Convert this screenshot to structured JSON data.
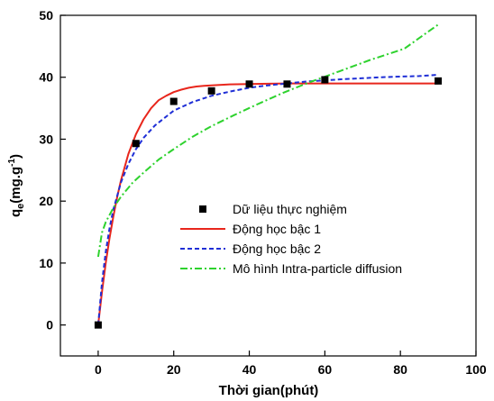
{
  "chart_data": {
    "type": "scatter",
    "xlabel": "Thời gian(phút)",
    "ylabel": {
      "main": "q",
      "sub": "e",
      "unit_open": "(mg.g",
      "sup": "-1",
      "unit_close": ")"
    },
    "xlim": [
      -10,
      100
    ],
    "ylim": [
      -5,
      50
    ],
    "x_ticks": [
      0,
      20,
      40,
      60,
      80,
      100
    ],
    "y_ticks": [
      0,
      10,
      20,
      30,
      40,
      50
    ],
    "grid": false,
    "legend_position": "center-right",
    "series": [
      {
        "name": "Dữ liệu thực nghiệm",
        "kind": "points",
        "color": "#000000",
        "x": [
          0,
          10,
          20,
          30,
          40,
          50,
          60,
          90
        ],
        "y": [
          0,
          29.3,
          36.1,
          37.8,
          38.9,
          38.9,
          39.6,
          39.4
        ]
      },
      {
        "name": "Động học bậc 1",
        "kind": "line",
        "style": "solid",
        "color": "#e8261c",
        "x": [
          0,
          1,
          2,
          3,
          4,
          5,
          6,
          8,
          10,
          12,
          14,
          16,
          18,
          20,
          22,
          24,
          26,
          28,
          30,
          35,
          40,
          45,
          50,
          55,
          60,
          65,
          70,
          75,
          80,
          85,
          90
        ],
        "y": [
          0,
          5.3,
          10.0,
          14.0,
          17.5,
          20.6,
          23.3,
          27.6,
          30.8,
          33.2,
          35.0,
          36.3,
          37.0,
          37.6,
          38.0,
          38.3,
          38.5,
          38.6,
          38.7,
          38.85,
          38.9,
          38.95,
          39.0,
          39.0,
          39.0,
          39.0,
          39.0,
          39.0,
          39.0,
          39.0,
          39.0
        ]
      },
      {
        "name": "Động học bậc 2",
        "kind": "line",
        "style": "dashed",
        "color": "#1f2fd6",
        "x": [
          0,
          1,
          2,
          3,
          4,
          6,
          8,
          10,
          12,
          15,
          20,
          25,
          30,
          35,
          40,
          45,
          50,
          55,
          60,
          65,
          70,
          75,
          80,
          85,
          90
        ],
        "y": [
          0,
          6.8,
          11.8,
          15.6,
          18.6,
          23.0,
          26.0,
          28.4,
          30.2,
          32.2,
          34.6,
          36.0,
          37.0,
          37.7,
          38.3,
          38.7,
          39.0,
          39.3,
          39.5,
          39.7,
          39.85,
          40.0,
          40.1,
          40.2,
          40.4
        ]
      },
      {
        "name": "Mô hình Intra-particle diffusion",
        "kind": "line",
        "style": "dashdot",
        "color": "#2ed22e",
        "x": [
          0,
          1,
          2,
          4,
          6,
          9,
          12,
          16,
          20,
          25,
          30,
          36,
          42,
          49,
          56,
          64,
          72,
          81,
          90
        ],
        "y": [
          11.0,
          14.9,
          16.6,
          18.9,
          20.7,
          22.9,
          24.6,
          26.7,
          28.4,
          30.4,
          32.1,
          33.9,
          35.6,
          37.5,
          39.2,
          41.0,
          42.8,
          44.6,
          48.5
        ]
      }
    ]
  }
}
